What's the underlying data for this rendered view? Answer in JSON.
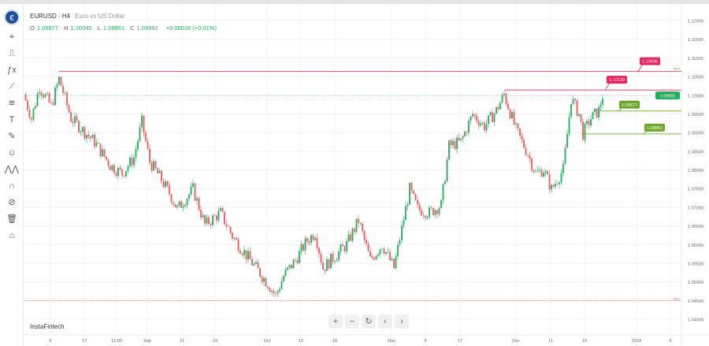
{
  "header": {
    "symbol": "EURUSD · H4",
    "description": "Euro vs US Dollar",
    "open_label": "O",
    "open": "1.09977",
    "high_label": "H",
    "high": "1.10045",
    "low_label": "L",
    "low": "1.09951",
    "close_label": "C",
    "close": "1.09992",
    "change": "+0.00016 (+0.01%)"
  },
  "toolbar": [
    "cursor-icon",
    "indicators-icon",
    "fx-icon",
    "draw-line-icon",
    "fib-icon",
    "text-icon",
    "brush-icon",
    "emoji-icon",
    "pattern-icon",
    "magnet-icon",
    "eye-off-icon",
    "trash-icon",
    "home-icon"
  ],
  "brand": "InstaFintech",
  "nav": {
    "zoom_in": "+",
    "zoom_out": "−",
    "reset": "↻",
    "left": "‹",
    "right": "›"
  },
  "colors": {
    "up": "#22ab5c",
    "down": "#f0575b",
    "resistance": "#e8245f",
    "support": "#6aa826",
    "price_tag": "#22ab5c"
  },
  "chart_data": {
    "type": "candlestick",
    "symbol": "EURUSD",
    "timeframe": "H4",
    "ylim": [
      1.0385,
      1.1225
    ],
    "y_ticks": [
      "1.12000",
      "1.11500",
      "1.11000",
      "1.10500",
      "1.10000",
      "1.09500",
      "1.09000",
      "1.08500",
      "1.08000",
      "1.07500",
      "1.07000",
      "1.06500",
      "1.06000",
      "1.05500",
      "1.05000",
      "1.04500",
      "1.04000"
    ],
    "x_ticks": [
      "9",
      "17",
      "12:00",
      "Sep",
      "11",
      "19",
      "Oct",
      "10",
      "18",
      "Nov",
      "9",
      "17",
      "Dec",
      "11",
      "19",
      "2024",
      "9"
    ],
    "price_path": [
      1.1002,
      1.0938,
      1.1023,
      1.097,
      1.1044,
      1.0938,
      1.0917,
      1.0875,
      1.0812,
      1.079,
      1.0833,
      1.0928,
      1.0822,
      1.079,
      1.0738,
      1.0695,
      1.0748,
      1.0653,
      1.0685,
      1.0622,
      1.0579,
      1.0537,
      1.0495,
      1.0463,
      1.0516,
      1.0558,
      1.0611,
      1.0632,
      1.0537,
      1.0558,
      1.06,
      1.0664,
      1.0558,
      1.06,
      1.0537,
      1.0643,
      1.0748,
      1.0695,
      1.0685,
      1.0706,
      1.0864,
      1.0875,
      1.0949,
      1.0917,
      1.0959,
      1.1002,
      1.0907,
      1.0843,
      1.079,
      1.0801,
      1.0748,
      1.0801,
      1.0991,
      1.0949,
      1.0896,
      1.0938,
      1.0959,
      1.09992
    ],
    "current_price": "1.09992",
    "levels": [
      {
        "label": "1.10636",
        "value": 1.10636,
        "kind": "resistance",
        "tag": "MAX"
      },
      {
        "label": "1.10139",
        "value": 1.10139,
        "kind": "resistance"
      },
      {
        "label": "1.09577",
        "value": 1.09577,
        "kind": "support"
      },
      {
        "label": "1.08962",
        "value": 1.08962,
        "kind": "support"
      }
    ],
    "min_line": {
      "value": 1.045,
      "tag": "MIN"
    }
  }
}
